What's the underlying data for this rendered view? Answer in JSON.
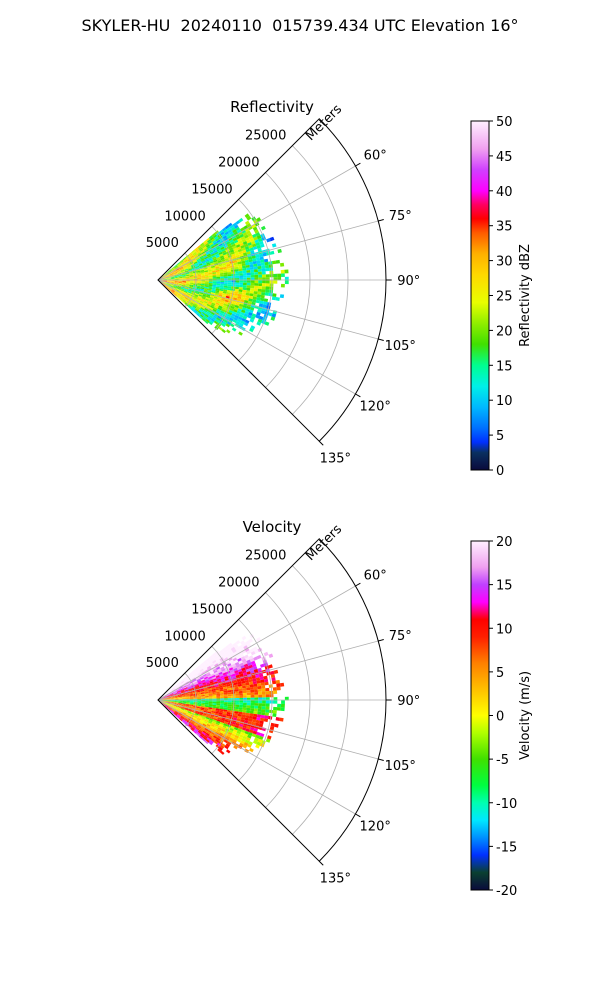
{
  "page_title": "SKYLER-HU  20240110  015739.434 UTC Elevation 16°",
  "chart_data": [
    {
      "type": "heatmap",
      "projection": "polar-sector",
      "title": "Reflectivity",
      "range_label": "Meters",
      "range_ticks": [
        5000,
        10000,
        15000,
        20000,
        25000
      ],
      "range_max": 30000,
      "azimuth_range_deg": [
        45,
        135
      ],
      "azimuth_ticks": [
        60,
        75,
        90,
        105,
        120,
        135
      ],
      "azimuth_tick_labels": [
        "60°",
        "75°",
        "90°",
        "105°",
        "120°",
        "135°"
      ],
      "grid": true,
      "echo_extent_m": 17000,
      "colorbar": {
        "label": "Reflectivity dBZ",
        "range": [
          0,
          50
        ],
        "ticks": [
          0,
          5,
          10,
          15,
          20,
          25,
          30,
          35,
          40,
          45,
          50
        ],
        "stops": [
          [
            0,
            "#0a0a3c"
          ],
          [
            2.5,
            "#0a3060"
          ],
          [
            4,
            "#0030ff"
          ],
          [
            6,
            "#0070ff"
          ],
          [
            9,
            "#00b8ff"
          ],
          [
            12,
            "#00f0e8"
          ],
          [
            15,
            "#00ff90"
          ],
          [
            18,
            "#40e000"
          ],
          [
            21,
            "#90ee00"
          ],
          [
            24,
            "#e8ff00"
          ],
          [
            28,
            "#ffd800"
          ],
          [
            31,
            "#ffb000"
          ],
          [
            34,
            "#ff5a00"
          ],
          [
            36,
            "#ff0000"
          ],
          [
            38,
            "#ff0060"
          ],
          [
            40,
            "#ff00ff"
          ],
          [
            43,
            "#d040ff"
          ],
          [
            46,
            "#f0a0f0"
          ],
          [
            50,
            "#fff0ff"
          ]
        ]
      }
    },
    {
      "type": "heatmap",
      "projection": "polar-sector",
      "title": "Velocity",
      "range_label": "Meters",
      "range_ticks": [
        5000,
        10000,
        15000,
        20000,
        25000
      ],
      "range_max": 30000,
      "azimuth_range_deg": [
        45,
        135
      ],
      "azimuth_ticks": [
        60,
        75,
        90,
        105,
        120,
        135
      ],
      "azimuth_tick_labels": [
        "60°",
        "75°",
        "90°",
        "105°",
        "120°",
        "135°"
      ],
      "grid": true,
      "echo_extent_m": 17000,
      "colorbar": {
        "label": "Velocity (m/s)",
        "range": [
          -20,
          20
        ],
        "ticks": [
          -20,
          -15,
          -10,
          -5,
          0,
          5,
          10,
          15,
          20
        ],
        "stops": [
          [
            -20,
            "#0a0a3c"
          ],
          [
            -18,
            "#0a4030"
          ],
          [
            -16,
            "#0030ff"
          ],
          [
            -14,
            "#0090ff"
          ],
          [
            -12,
            "#00e8ff"
          ],
          [
            -10,
            "#00ffb0"
          ],
          [
            -8,
            "#00ff40"
          ],
          [
            -5,
            "#40e000"
          ],
          [
            -2,
            "#b0ff00"
          ],
          [
            0,
            "#ffff00"
          ],
          [
            3,
            "#ffc000"
          ],
          [
            6,
            "#ff8000"
          ],
          [
            9,
            "#ff2000"
          ],
          [
            11,
            "#ff0000"
          ],
          [
            13,
            "#ff00ff"
          ],
          [
            15,
            "#c040ff"
          ],
          [
            17,
            "#f0a0f0"
          ],
          [
            20,
            "#fff0ff"
          ]
        ]
      }
    }
  ]
}
